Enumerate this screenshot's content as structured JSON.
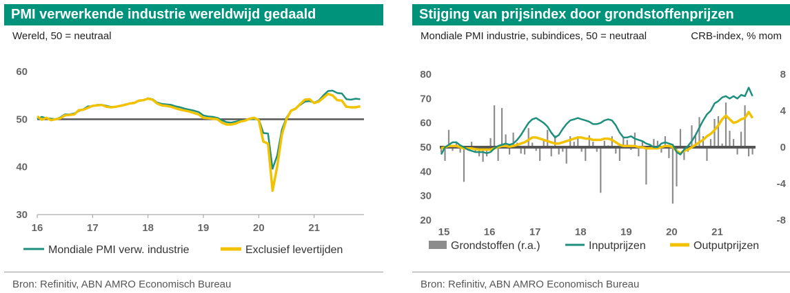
{
  "left_panel": {
    "title": "PMI verwerkende industrie wereldwijd gedaald",
    "subtitle": "Wereld, 50 = neutraal",
    "source": "Bron: Refinitiv, ABN AMRO Economisch Bureau"
  },
  "right_panel": {
    "title": "Stijging van prijsindex door grondstoffenprijzen",
    "subtitle": "Mondiale PMI industrie, subindices, 50 = neutraal",
    "subtitle_right": "CRB-index, % mom",
    "source": "Bron: Refinitiv, ABN AMRO Economisch Bureau"
  },
  "chart_data": [
    {
      "type": "line",
      "title": "PMI verwerkende industrie wereldwijd gedaald",
      "subtitle": "Wereld, 50 = neutraal",
      "ylim": [
        30,
        60
      ],
      "yticks": [
        30,
        40,
        50,
        60
      ],
      "xlim": [
        2016.0,
        2021.9
      ],
      "xticks": [
        {
          "value": 2016,
          "label": "16"
        },
        {
          "value": 2017,
          "label": "17"
        },
        {
          "value": 2018,
          "label": "18"
        },
        {
          "value": 2019,
          "label": "19"
        },
        {
          "value": 2020,
          "label": "20"
        },
        {
          "value": 2021,
          "label": "21"
        }
      ],
      "reference_line": 50,
      "legend": [
        "Mondiale PMI verw. industrie",
        "Exclusief levertijden"
      ],
      "colors": {
        "Mondiale PMI verw. industrie": "#1e8f7c",
        "Exclusief levertijden": "#f2c200",
        "reference": "#555555",
        "axis": "#999999"
      },
      "series": [
        {
          "name": "Mondiale PMI verw. industrie",
          "x": [
            2016.0,
            2016.083,
            2016.167,
            2016.25,
            2016.333,
            2016.417,
            2016.5,
            2016.583,
            2016.667,
            2016.75,
            2016.833,
            2016.917,
            2017.0,
            2017.083,
            2017.167,
            2017.25,
            2017.333,
            2017.417,
            2017.5,
            2017.583,
            2017.667,
            2017.75,
            2017.833,
            2017.917,
            2018.0,
            2018.083,
            2018.167,
            2018.25,
            2018.333,
            2018.417,
            2018.5,
            2018.583,
            2018.667,
            2018.75,
            2018.833,
            2018.917,
            2019.0,
            2019.083,
            2019.167,
            2019.25,
            2019.333,
            2019.417,
            2019.5,
            2019.583,
            2019.667,
            2019.75,
            2019.833,
            2019.917,
            2020.0,
            2020.083,
            2020.167,
            2020.25,
            2020.333,
            2020.417,
            2020.5,
            2020.583,
            2020.667,
            2020.75,
            2020.833,
            2020.917,
            2021.0,
            2021.083,
            2021.167,
            2021.25,
            2021.333,
            2021.417,
            2021.5,
            2021.583,
            2021.667,
            2021.75,
            2021.833
          ],
          "values": [
            50.0,
            50.5,
            50.2,
            50.1,
            50.0,
            50.4,
            51.0,
            51.0,
            51.2,
            51.7,
            52.1,
            52.7,
            52.7,
            53.0,
            53.0,
            52.8,
            52.6,
            52.6,
            52.8,
            53.1,
            53.3,
            53.5,
            53.8,
            54.0,
            54.4,
            54.2,
            53.5,
            53.2,
            53.1,
            53.0,
            52.7,
            52.5,
            52.2,
            52.0,
            51.8,
            51.5,
            50.8,
            50.6,
            50.5,
            50.3,
            49.8,
            49.4,
            49.3,
            49.5,
            49.7,
            49.8,
            50.0,
            50.0,
            50.0,
            47.1,
            47.0,
            39.6,
            42.4,
            47.8,
            50.3,
            51.8,
            52.3,
            53.0,
            53.7,
            53.8,
            53.5,
            53.9,
            55.0,
            55.9,
            56.0,
            55.5,
            55.4,
            54.2,
            54.1,
            54.3,
            54.2
          ]
        },
        {
          "name": "Exclusief levertijden",
          "x": [
            2016.0,
            2016.083,
            2016.167,
            2016.25,
            2016.333,
            2016.417,
            2016.5,
            2016.583,
            2016.667,
            2016.75,
            2016.833,
            2016.917,
            2017.0,
            2017.083,
            2017.167,
            2017.25,
            2017.333,
            2017.417,
            2017.5,
            2017.583,
            2017.667,
            2017.75,
            2017.833,
            2017.917,
            2018.0,
            2018.083,
            2018.167,
            2018.25,
            2018.333,
            2018.417,
            2018.5,
            2018.583,
            2018.667,
            2018.75,
            2018.833,
            2018.917,
            2019.0,
            2019.083,
            2019.167,
            2019.25,
            2019.333,
            2019.417,
            2019.5,
            2019.583,
            2019.667,
            2019.75,
            2019.833,
            2019.917,
            2020.0,
            2020.083,
            2020.167,
            2020.25,
            2020.333,
            2020.417,
            2020.5,
            2020.583,
            2020.667,
            2020.75,
            2020.833,
            2020.917,
            2021.0,
            2021.083,
            2021.167,
            2021.25,
            2021.333,
            2021.417,
            2021.5,
            2021.583,
            2021.667,
            2021.75,
            2021.833
          ],
          "values": [
            50.6,
            49.9,
            50.3,
            49.8,
            50.0,
            50.2,
            50.8,
            50.9,
            51.0,
            51.9,
            52.0,
            52.4,
            52.8,
            52.9,
            53.0,
            52.6,
            52.5,
            52.6,
            52.8,
            53.0,
            53.3,
            53.4,
            53.9,
            54.0,
            54.3,
            54.1,
            53.3,
            52.9,
            52.8,
            52.6,
            52.3,
            52.0,
            51.8,
            51.6,
            51.3,
            51.0,
            50.3,
            50.2,
            50.1,
            50.0,
            49.3,
            48.9,
            48.9,
            49.1,
            49.5,
            49.7,
            50.1,
            50.3,
            49.8,
            45.3,
            44.9,
            35.0,
            40.1,
            46.8,
            50.0,
            51.8,
            52.2,
            53.2,
            54.1,
            54.2,
            53.4,
            53.7,
            54.5,
            55.3,
            55.0,
            54.0,
            53.9,
            52.6,
            52.5,
            52.5,
            52.7
          ]
        }
      ]
    },
    {
      "type": "bar+line",
      "title": "Stijging van prijsindex door grondstoffenprijzen",
      "subtitle": "Mondiale PMI industrie, subindices, 50 = neutraal",
      "secondary_axis_label": "CRB-index, % mom",
      "ylim": [
        20,
        80
      ],
      "yticks": [
        20,
        30,
        40,
        50,
        60,
        70,
        80
      ],
      "y2lim": [
        -8,
        8
      ],
      "y2ticks": [
        -8,
        -4,
        0,
        4,
        8
      ],
      "xlim": [
        2015.0,
        2021.9
      ],
      "xticks": [
        {
          "value": 2015,
          "label": "15"
        },
        {
          "value": 2016,
          "label": "16"
        },
        {
          "value": 2017,
          "label": "17"
        },
        {
          "value": 2018,
          "label": "18"
        },
        {
          "value": 2019,
          "label": "19"
        },
        {
          "value": 2020,
          "label": "20"
        },
        {
          "value": 2021,
          "label": "21"
        }
      ],
      "reference_line": 50,
      "legend": [
        "Grondstoffen (r.a.)",
        "Inputprijzen",
        "Outputprijzen"
      ],
      "colors": {
        "Grondstoffen (r.a.)": "#8c8c8c",
        "Inputprijzen": "#1e8f7c",
        "Outputprijzen": "#f2c200",
        "reference": "#555555"
      },
      "bars": {
        "name": "Grondstoffen (r.a.)",
        "axis": "right",
        "x": [
          2015.0,
          2015.083,
          2015.167,
          2015.25,
          2015.333,
          2015.417,
          2015.5,
          2015.583,
          2015.667,
          2015.75,
          2015.833,
          2015.917,
          2016.0,
          2016.083,
          2016.167,
          2016.25,
          2016.333,
          2016.417,
          2016.5,
          2016.583,
          2016.667,
          2016.75,
          2016.833,
          2016.917,
          2017.0,
          2017.083,
          2017.167,
          2017.25,
          2017.333,
          2017.417,
          2017.5,
          2017.583,
          2017.667,
          2017.75,
          2017.833,
          2017.917,
          2018.0,
          2018.083,
          2018.167,
          2018.25,
          2018.333,
          2018.417,
          2018.5,
          2018.583,
          2018.667,
          2018.75,
          2018.833,
          2018.917,
          2019.0,
          2019.083,
          2019.167,
          2019.25,
          2019.333,
          2019.417,
          2019.5,
          2019.583,
          2019.667,
          2019.75,
          2019.833,
          2019.917,
          2020.0,
          2020.083,
          2020.167,
          2020.25,
          2020.333,
          2020.417,
          2020.5,
          2020.583,
          2020.667,
          2020.75,
          2020.833,
          2020.917,
          2021.0,
          2021.083,
          2021.167,
          2021.25,
          2021.333,
          2021.417,
          2021.5,
          2021.583,
          2021.667,
          2021.75,
          2021.833
        ],
        "values": [
          -0.6,
          -1.5,
          1.9,
          -0.4,
          0.6,
          -0.6,
          -3.8,
          -0.2,
          0.6,
          -0.6,
          -1.0,
          -1.6,
          -1.0,
          1.0,
          4.6,
          -1.5,
          4.3,
          1.4,
          -0.8,
          1.6,
          0.5,
          -0.7,
          -0.8,
          2.1,
          0.5,
          -0.4,
          -1.5,
          0.9,
          1.9,
          -1.0,
          1.3,
          -0.8,
          -0.5,
          -1.8,
          1.2,
          0.6,
          1.2,
          -0.5,
          -1.5,
          1.3,
          0.6,
          -0.5,
          -5.0,
          0.7,
          0.2,
          1.2,
          -0.7,
          -1.5,
          1.0,
          0.8,
          -0.3,
          1.6,
          -1.0,
          0.6,
          -4.1,
          0.3,
          0.9,
          0.7,
          -0.6,
          1.2,
          -1.2,
          -6.2,
          -4.3,
          2.0,
          -1.4,
          -0.5,
          2.4,
          1.4,
          3.3,
          1.2,
          -1.5,
          0.9,
          3.1,
          3.4,
          0.4,
          4.9,
          1.8,
          0.9,
          -0.8,
          1.7,
          4.6,
          -1.0,
          -0.8
        ]
      },
      "series": [
        {
          "name": "Inputprijzen",
          "x": [
            2015.0,
            2015.083,
            2015.167,
            2015.25,
            2015.333,
            2015.417,
            2015.5,
            2015.583,
            2015.667,
            2015.75,
            2015.833,
            2015.917,
            2016.0,
            2016.083,
            2016.167,
            2016.25,
            2016.333,
            2016.417,
            2016.5,
            2016.583,
            2016.667,
            2016.75,
            2016.833,
            2016.917,
            2017.0,
            2017.083,
            2017.167,
            2017.25,
            2017.333,
            2017.417,
            2017.5,
            2017.583,
            2017.667,
            2017.75,
            2017.833,
            2017.917,
            2018.0,
            2018.083,
            2018.167,
            2018.25,
            2018.333,
            2018.417,
            2018.5,
            2018.583,
            2018.667,
            2018.75,
            2018.833,
            2018.917,
            2019.0,
            2019.083,
            2019.167,
            2019.25,
            2019.333,
            2019.417,
            2019.5,
            2019.583,
            2019.667,
            2019.75,
            2019.833,
            2019.917,
            2020.0,
            2020.083,
            2020.167,
            2020.25,
            2020.333,
            2020.417,
            2020.5,
            2020.583,
            2020.667,
            2020.75,
            2020.833,
            2020.917,
            2021.0,
            2021.083,
            2021.167,
            2021.25,
            2021.333,
            2021.417,
            2021.5,
            2021.583,
            2021.667,
            2021.75,
            2021.833
          ],
          "values": [
            47.0,
            50.0,
            51.0,
            52.0,
            52.0,
            50.8,
            50.0,
            49.0,
            48.5,
            48.0,
            48.0,
            48.0,
            47.5,
            48.0,
            49.5,
            50.5,
            51.0,
            51.5,
            51.0,
            51.5,
            53.0,
            55.0,
            57.5,
            60.0,
            61.5,
            62.0,
            61.0,
            60.0,
            58.5,
            56.0,
            54.0,
            55.0,
            57.5,
            59.5,
            61.0,
            61.5,
            62.0,
            61.5,
            61.0,
            60.5,
            59.5,
            59.5,
            60.0,
            61.0,
            61.5,
            61.0,
            59.0,
            56.0,
            54.0,
            54.0,
            54.5,
            53.5,
            53.0,
            52.5,
            51.5,
            51.0,
            50.0,
            50.0,
            51.5,
            52.0,
            51.5,
            51.0,
            48.0,
            47.0,
            49.0,
            50.5,
            52.5,
            55.0,
            58.0,
            61.0,
            63.5,
            65.0,
            68.0,
            69.0,
            70.5,
            71.0,
            70.0,
            71.0,
            70.0,
            71.5,
            71.0,
            74.5,
            71.0
          ]
        },
        {
          "name": "Outputprijzen",
          "x": [
            2015.0,
            2015.083,
            2015.167,
            2015.25,
            2015.333,
            2015.417,
            2015.5,
            2015.583,
            2015.667,
            2015.75,
            2015.833,
            2015.917,
            2016.0,
            2016.083,
            2016.167,
            2016.25,
            2016.333,
            2016.417,
            2016.5,
            2016.583,
            2016.667,
            2016.75,
            2016.833,
            2016.917,
            2017.0,
            2017.083,
            2017.167,
            2017.25,
            2017.333,
            2017.417,
            2017.5,
            2017.583,
            2017.667,
            2017.75,
            2017.833,
            2017.917,
            2018.0,
            2018.083,
            2018.167,
            2018.25,
            2018.333,
            2018.417,
            2018.5,
            2018.583,
            2018.667,
            2018.75,
            2018.833,
            2018.917,
            2019.0,
            2019.083,
            2019.167,
            2019.25,
            2019.333,
            2019.417,
            2019.5,
            2019.583,
            2019.667,
            2019.75,
            2019.833,
            2019.917,
            2020.0,
            2020.083,
            2020.167,
            2020.25,
            2020.333,
            2020.417,
            2020.5,
            2020.583,
            2020.667,
            2020.75,
            2020.833,
            2020.917,
            2021.0,
            2021.083,
            2021.167,
            2021.25,
            2021.333,
            2021.417,
            2021.5,
            2021.583,
            2021.667,
            2021.75,
            2021.833
          ],
          "values": [
            49.5,
            50.0,
            50.5,
            50.5,
            50.5,
            50.0,
            49.5,
            49.5,
            49.5,
            49.2,
            49.0,
            49.0,
            49.0,
            49.0,
            49.5,
            50.0,
            50.5,
            50.5,
            50.2,
            50.5,
            51.0,
            51.5,
            52.0,
            53.0,
            54.0,
            54.0,
            53.5,
            53.0,
            52.5,
            52.0,
            51.5,
            51.5,
            52.0,
            52.5,
            53.0,
            53.5,
            54.0,
            54.0,
            53.5,
            53.5,
            53.0,
            53.0,
            53.0,
            53.5,
            53.5,
            53.0,
            52.0,
            51.0,
            50.5,
            50.5,
            50.5,
            50.5,
            50.0,
            50.0,
            49.5,
            49.5,
            49.5,
            49.5,
            50.0,
            50.5,
            50.5,
            50.0,
            48.5,
            47.5,
            48.5,
            49.0,
            50.0,
            51.0,
            52.0,
            53.0,
            54.5,
            55.5,
            57.0,
            59.0,
            61.5,
            63.0,
            61.5,
            60.0,
            60.5,
            61.5,
            62.0,
            64.5,
            62.0
          ]
        }
      ]
    }
  ]
}
